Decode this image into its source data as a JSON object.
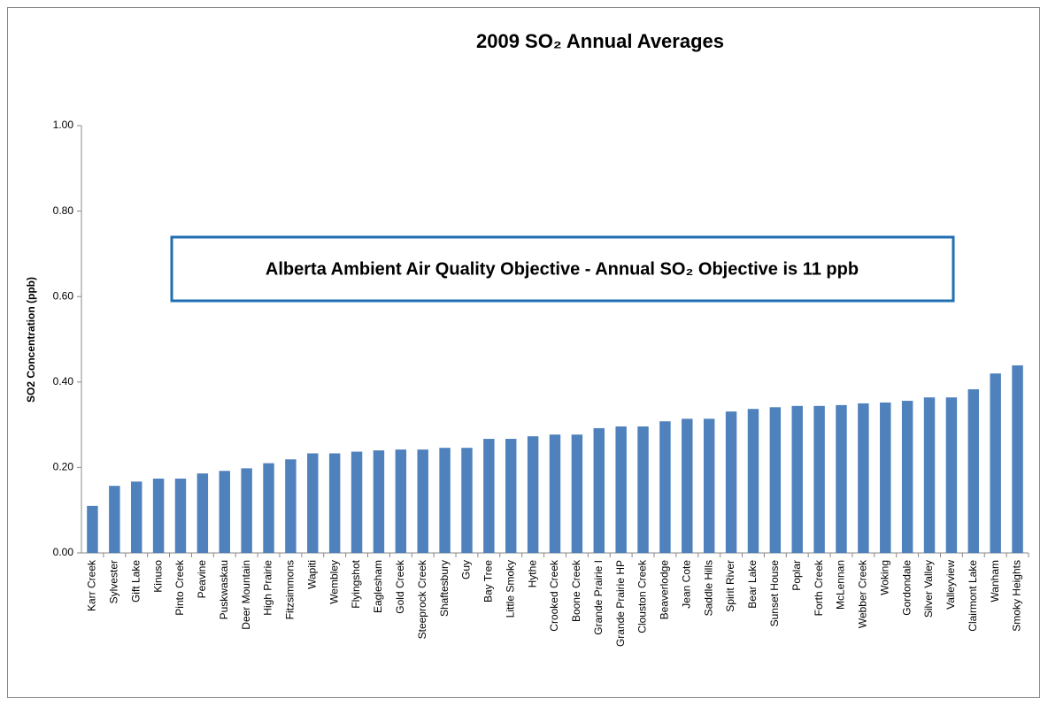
{
  "chart_data": {
    "type": "bar",
    "title": "2009 SO₂ Annual Averages",
    "annotation": "Alberta Ambient Air Quality Objective - Annual SO₂ Objective is 11 ppb",
    "y_label": "SO2 Concentration  (ppb)",
    "categories": [
      "Karr Creek",
      "Sylvester",
      "Gift Lake",
      "Kinuso",
      "Pinto Creek",
      "Peavine",
      "Puskwaskau",
      "Deer Mountain",
      "High Prairie",
      "Fitzsimmons",
      "Wapiti",
      "Wembley",
      "Flyingshot",
      "Eaglesham",
      "Gold Creek",
      "Steeprock Creek",
      "Shaftesbury",
      "Guy",
      "Bay Tree",
      "Little Smoky",
      "Hythe",
      "Crooked Creek",
      "Boone Creek",
      "Grande Prairie I",
      "Grande Prairie HP",
      "Clouston Creek",
      "Beaverlodge",
      "Jean Cote",
      "Saddle Hills",
      "Spirit River",
      "Bear Lake",
      "Sunset House",
      "Poplar",
      "Forth Creek",
      "McLennan",
      "Webber Creek",
      "Woking",
      "Gordondale",
      "Silver Valley",
      "Valleyview",
      "Clairmont Lake",
      "Wanham",
      "Smoky Heights"
    ],
    "values": [
      0.11,
      0.157,
      0.167,
      0.174,
      0.174,
      0.186,
      0.192,
      0.198,
      0.21,
      0.219,
      0.233,
      0.233,
      0.237,
      0.24,
      0.242,
      0.242,
      0.246,
      0.246,
      0.267,
      0.267,
      0.273,
      0.277,
      0.277,
      0.292,
      0.296,
      0.296,
      0.308,
      0.314,
      0.314,
      0.331,
      0.337,
      0.341,
      0.344,
      0.344,
      0.346,
      0.35,
      0.352,
      0.356,
      0.364,
      0.364,
      0.383,
      0.42,
      0.439
    ],
    "color": "#4f81bd",
    "ylim": [
      0,
      1
    ],
    "yticks": [
      {
        "value": 0,
        "label": "0.00"
      },
      {
        "value": 0.2,
        "label": "0.20"
      },
      {
        "value": 0.4,
        "label": "0.40"
      },
      {
        "value": 0.6,
        "label": "0.60"
      },
      {
        "value": 0.8,
        "label": "0.80"
      },
      {
        "value": 1,
        "label": "1.00"
      }
    ],
    "grid": false
  }
}
